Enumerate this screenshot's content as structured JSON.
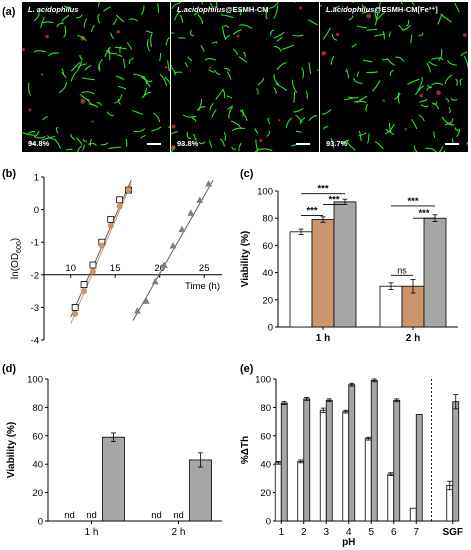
{
  "panel_a": {
    "label": "(a)",
    "images": [
      {
        "title_main": "L. acidophilus",
        "title_suffix": "",
        "percentage": "94.8%"
      },
      {
        "title_main": "L.acidophilus",
        "title_suffix": "@ESMH-CM",
        "percentage": "93.8%"
      },
      {
        "title_main": "L.acidophilus",
        "title_suffix": "@ESMH-CM[Fe³⁺]",
        "percentage": "93.7%"
      }
    ]
  },
  "colors": {
    "white_bar": "#ffffff",
    "brown": "#c8966a",
    "gray": "#a6a6a6",
    "cell_green": "#33dd33",
    "cell_red": "#c0392b"
  },
  "chart_data": [
    {
      "panel": "(b)",
      "type": "scatter",
      "xlabel": "Time (h)",
      "ylabel": "ln(OD600)",
      "xlim": [
        7,
        27
      ],
      "ylim": [
        -4,
        1
      ],
      "xticks": [
        "10",
        "15",
        "20",
        "25"
      ],
      "yticks": [
        "-4",
        "-3",
        "-2",
        "-1",
        "0",
        "1"
      ],
      "series": [
        {
          "marker": "square-open",
          "color": "#ffffff",
          "x": [
            10.5,
            11.5,
            12.5,
            13.5,
            14.5,
            15.5,
            16.5
          ],
          "y": [
            -3.0,
            -2.3,
            -1.7,
            -1.0,
            -0.3,
            0.3,
            0.6
          ]
        },
        {
          "marker": "circle",
          "color": "#c8966a",
          "x": [
            10.5,
            11.5,
            12.5,
            13.5,
            14.5,
            15.5,
            16.5
          ],
          "y": [
            -3.2,
            -2.5,
            -1.9,
            -1.1,
            -0.5,
            0.1,
            0.6
          ]
        },
        {
          "marker": "triangle",
          "color": "#808080",
          "x": [
            17.5,
            18.5,
            19.5,
            20.5,
            21.5,
            22.5,
            23.5,
            24.5,
            25.5
          ],
          "y": [
            -3.1,
            -2.8,
            -2.2,
            -1.7,
            -1.1,
            -0.6,
            -0.1,
            0.3,
            0.8
          ]
        }
      ],
      "fits": [
        {
          "color": "#c8966a",
          "x": [
            10.0,
            16.8
          ],
          "y": [
            -3.5,
            0.8
          ]
        },
        {
          "color": "#606060",
          "x": [
            10.0,
            16.8
          ],
          "y": [
            -3.3,
            0.9
          ]
        },
        {
          "color": "#606060",
          "x": [
            17.0,
            26.0
          ],
          "y": [
            -3.4,
            0.9
          ]
        }
      ]
    },
    {
      "panel": "(c)",
      "type": "bar",
      "ylabel": "Viability (%)",
      "ylim": [
        0,
        100
      ],
      "yticks": [
        "0",
        "20",
        "40",
        "60",
        "80",
        "100"
      ],
      "categories": [
        "1 h",
        "2 h"
      ],
      "series": [
        {
          "color": "#ffffff",
          "values": [
            70,
            30
          ],
          "errors": [
            2,
            2.5
          ]
        },
        {
          "color": "#c8966a",
          "values": [
            79,
            30
          ],
          "errors": [
            2,
            5
          ]
        },
        {
          "color": "#a6a6a6",
          "values": [
            92,
            80
          ],
          "errors": [
            2,
            2.5
          ]
        }
      ],
      "annotations": [
        {
          "group": 0,
          "from": 0,
          "to": 2,
          "y": 98,
          "text": "***"
        },
        {
          "group": 0,
          "from": 1,
          "to": 2,
          "y": 90,
          "text": "***"
        },
        {
          "group": 0,
          "from": 0,
          "to": 1,
          "y": 82,
          "text": "***"
        },
        {
          "group": 1,
          "from": 0,
          "to": 2,
          "y": 89,
          "text": "***"
        },
        {
          "group": 1,
          "from": 1,
          "to": 2,
          "y": 80,
          "text": "***"
        },
        {
          "group": 1,
          "from": 0,
          "to": 1,
          "y": 38,
          "text": "ns"
        }
      ]
    },
    {
      "panel": "(d)",
      "type": "bar",
      "ylabel": "Viability (%)",
      "ylim": [
        0,
        100
      ],
      "yticks": [
        "0",
        "20",
        "40",
        "60",
        "80",
        "100"
      ],
      "categories": [
        "1 h",
        "2 h"
      ],
      "series": [
        {
          "color": "#ffffff",
          "values": [
            0,
            0
          ],
          "errors": [
            0,
            0
          ],
          "labels": [
            "nd",
            "nd"
          ]
        },
        {
          "color": "#c8966a",
          "values": [
            0,
            0
          ],
          "errors": [
            0,
            0
          ],
          "labels": [
            "nd",
            "nd"
          ]
        },
        {
          "color": "#a6a6a6",
          "values": [
            59,
            43
          ],
          "errors": [
            3,
            5
          ],
          "labels": [
            "",
            ""
          ]
        }
      ]
    },
    {
      "panel": "(e)",
      "type": "bar",
      "xlabel": "pH",
      "ylabel": "%ΔTh",
      "ylim": [
        0,
        100
      ],
      "yticks": [
        "0",
        "20",
        "40",
        "60",
        "80",
        "100"
      ],
      "categories": [
        "1",
        "2",
        "3",
        "4",
        "5",
        "6",
        "7",
        "SGF"
      ],
      "series": [
        {
          "color": "#ffffff",
          "values": [
            41,
            42,
            78,
            77,
            58,
            33,
            9,
            25
          ],
          "errors": [
            1,
            1,
            1.5,
            1,
            1,
            1,
            0,
            3
          ]
        },
        {
          "color": "#a6a6a6",
          "values": [
            83,
            86,
            85,
            96,
            99,
            85,
            75,
            84
          ],
          "errors": [
            1,
            1,
            1,
            1,
            1,
            1,
            0,
            5
          ]
        }
      ]
    }
  ]
}
